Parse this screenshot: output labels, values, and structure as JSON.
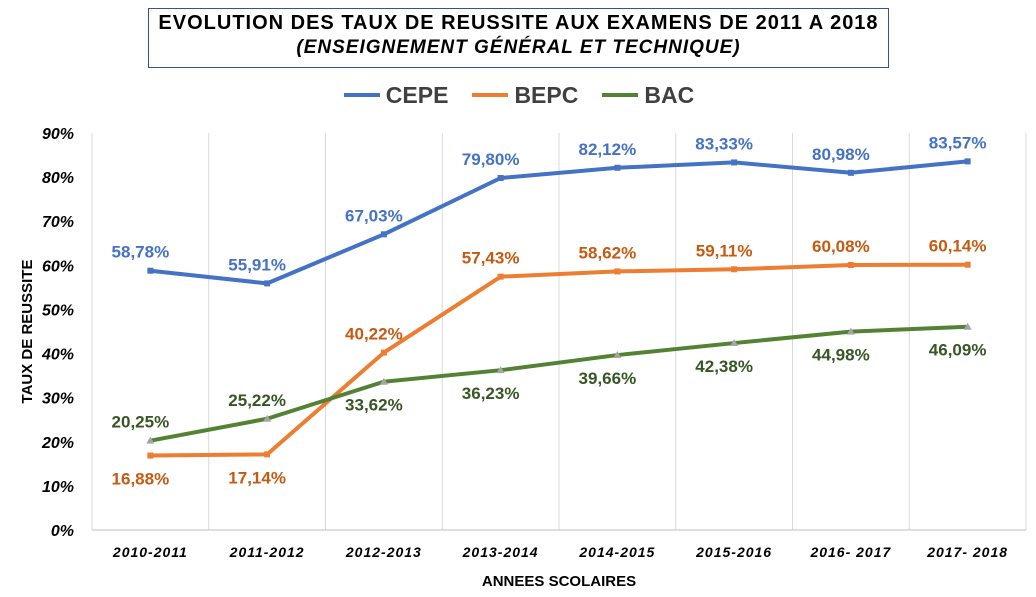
{
  "chart_data": {
    "type": "line",
    "title": "EVOLUTION DES TAUX DE REUSSITE AUX EXAMENS DE 2011 A 2018",
    "subtitle": "(ENSEIGNEMENT GÉNÉRAL ET TECHNIQUE)",
    "xlabel": "ANNEES SCOLAIRES",
    "ylabel": "TAUX DE REUSSITE",
    "categories": [
      "2010-2011",
      "2011-2012",
      "2012-2013",
      "2013-2014",
      "2014-2015",
      "2015-2016",
      "2016- 2017",
      "2017- 2018"
    ],
    "y_ticks": [
      "0%",
      "10%",
      "20%",
      "30%",
      "40%",
      "50%",
      "60%",
      "70%",
      "80%",
      "90%"
    ],
    "ylim": [
      0,
      90
    ],
    "grid": "vertical",
    "legend_position": "top",
    "series": [
      {
        "name": "CEPE",
        "color": "#4472c4",
        "label_color": "#4472c4",
        "label_position": "above",
        "values": [
          58.78,
          55.91,
          67.03,
          79.8,
          82.12,
          83.33,
          80.98,
          83.57
        ],
        "labels": [
          "58,78%",
          "55,91%",
          "67,03%",
          "79,80%",
          "82,12%",
          "83,33%",
          "80,98%",
          "83,57%"
        ]
      },
      {
        "name": "BEPC",
        "color": "#ed7d31",
        "label_color": "#c55a11",
        "label_position": "mixed",
        "values": [
          16.88,
          17.14,
          40.22,
          57.43,
          58.62,
          59.11,
          60.08,
          60.14
        ],
        "labels": [
          "16,88%",
          "17,14%",
          "40,22%",
          "57,43%",
          "58,62%",
          "59,11%",
          "60,08%",
          "60,14%"
        ]
      },
      {
        "name": "BAC",
        "color": "#548235",
        "label_color": "#375623",
        "label_position": "mixed",
        "values": [
          20.25,
          25.22,
          33.62,
          36.23,
          39.66,
          42.38,
          44.98,
          46.09
        ],
        "labels": [
          "20,25%",
          "25,22%",
          "33,62%",
          "36,23%",
          "39,66%",
          "42,38%",
          "44,98%",
          "46,09%"
        ]
      }
    ]
  }
}
